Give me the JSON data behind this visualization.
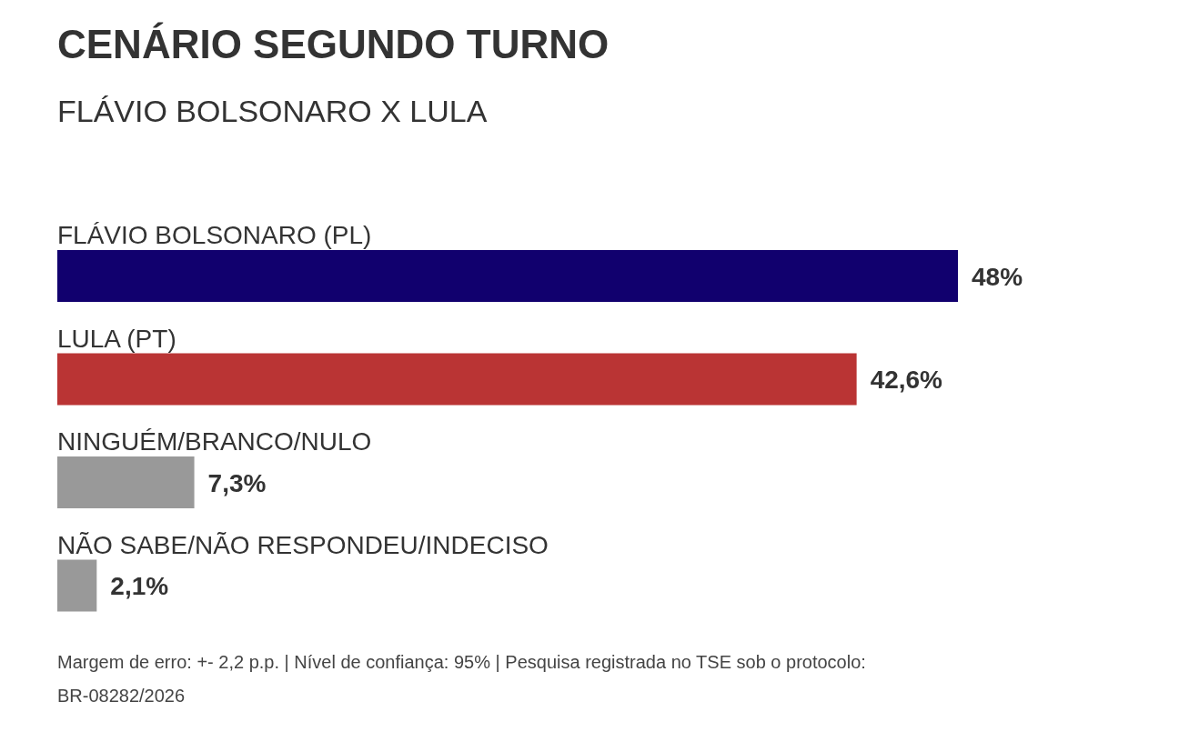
{
  "chart_data": {
    "type": "bar",
    "orientation": "horizontal",
    "title": "CENÁRIO SEGUNDO TURNO",
    "subtitle": "FLÁVIO BOLSONARO X LULA",
    "categories": [
      "FLÁVIO BOLSONARO (PL)",
      "LULA (PT)",
      "NINGUÉM/BRANCO/NULO",
      "NÃO SABE/NÃO RESPONDEU/INDECISO"
    ],
    "values": [
      48,
      42.6,
      7.3,
      2.1
    ],
    "colors": [
      "#11006e",
      "#ba3434",
      "#999999",
      "#999999"
    ],
    "value_labels": [
      "48%",
      "42,6%",
      "7,3%",
      "2,1%"
    ],
    "annotations": [
      "Margem de erro: +- 2,2 p.p. | Nível de confiança: 95% | Pesquisa registrada no TSE sob o protocolo: BR-08282/2026"
    ]
  }
}
